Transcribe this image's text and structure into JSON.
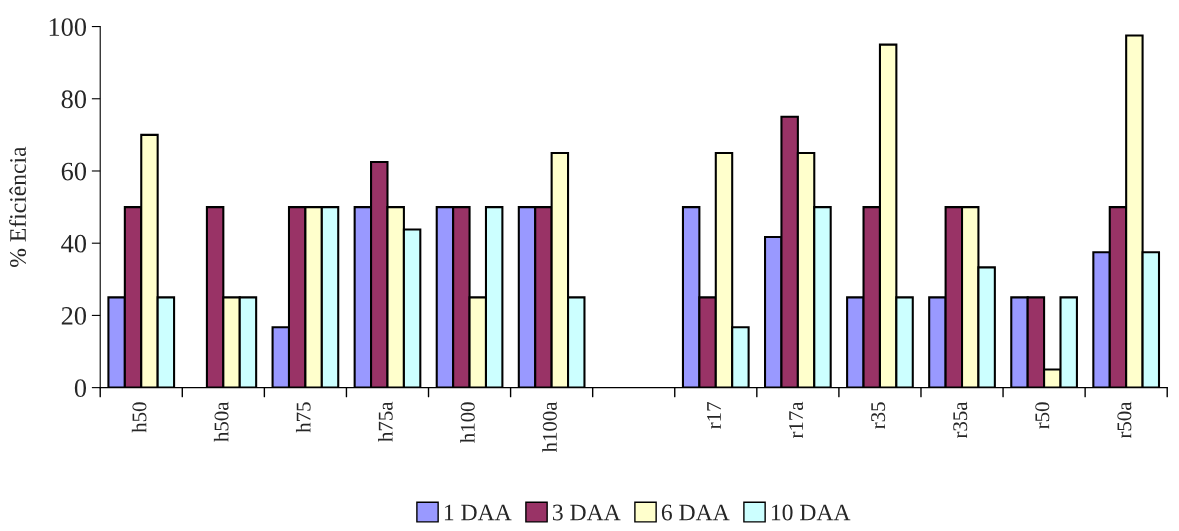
{
  "chart_data": {
    "type": "bar",
    "ylabel": "% Eficiência",
    "categories": [
      "h50",
      "h50a",
      "h75",
      "h75a",
      "h100",
      "h100a",
      null,
      "r17",
      "r17a",
      "r35",
      "r35a",
      "r50",
      "r50a"
    ],
    "series": [
      {
        "name": "1 DAA",
        "color": "#9999ff",
        "values": [
          25,
          null,
          16.7,
          50,
          50,
          50,
          null,
          50,
          41.7,
          25,
          25,
          25,
          37.5
        ]
      },
      {
        "name": "3 DAA",
        "color": "#993366",
        "values": [
          50,
          50,
          50,
          62.5,
          50,
          50,
          null,
          25,
          75,
          50,
          50,
          25,
          50
        ]
      },
      {
        "name": "6 DAA",
        "color": "#ffffcc",
        "values": [
          70,
          25,
          50,
          50,
          25,
          65,
          null,
          65,
          65,
          95,
          50,
          5,
          97.5
        ]
      },
      {
        "name": "10 DAA",
        "color": "#ccffff",
        "values": [
          25,
          25,
          50,
          43.8,
          50,
          25,
          null,
          16.7,
          50,
          25,
          33.3,
          25,
          37.5
        ]
      }
    ],
    "ylim": [
      0,
      100
    ],
    "yticks": [
      0,
      20,
      40,
      60,
      80,
      100
    ],
    "grid": false,
    "legend": "bottom"
  }
}
